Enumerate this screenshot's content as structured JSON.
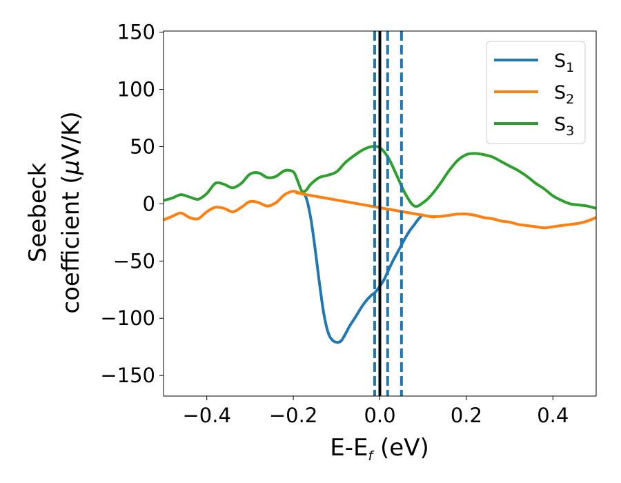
{
  "chart_data": {
    "type": "line",
    "xlabel_main": "E-E",
    "xlabel_sub": "f",
    "xlabel_unit": " (eV)",
    "ylabel_line1": "Seebeck",
    "ylabel_line2_a": "coefficient  (",
    "ylabel_line2_mu": "μ",
    "ylabel_line2_b": "V/K)",
    "xlim": [
      -0.5,
      0.5
    ],
    "ylim": [
      -168,
      151
    ],
    "xticks": [
      -0.4,
      -0.2,
      0.0,
      0.2,
      0.4
    ],
    "xtick_labels": [
      "−0.4",
      "−0.2",
      "0.0",
      "0.2",
      "0.4"
    ],
    "yticks": [
      -150,
      -100,
      -50,
      0,
      50,
      100,
      150
    ],
    "ytick_labels": [
      "−150",
      "−100",
      "−50",
      "0",
      "50",
      "100",
      "150"
    ],
    "legend_position": "top-right",
    "grid": false,
    "series": [
      {
        "name": "S1",
        "label_main": "S",
        "label_sub": "1",
        "color": "#1f77b4",
        "x": [
          -0.18,
          -0.17,
          -0.16,
          -0.15,
          -0.14,
          -0.13,
          -0.12,
          -0.11,
          -0.1,
          -0.09,
          -0.08,
          -0.07,
          -0.06,
          -0.05,
          -0.04,
          -0.03,
          -0.02,
          -0.01,
          0.0,
          0.01,
          0.02,
          0.03,
          0.04,
          0.05,
          0.06,
          0.07,
          0.08,
          0.09,
          0.1
        ],
        "y": [
          10,
          5,
          -12,
          -38,
          -68,
          -95,
          -112,
          -119,
          -121,
          -120,
          -114,
          -107,
          -101,
          -95,
          -89,
          -84,
          -80,
          -77,
          -72,
          -66,
          -58,
          -50,
          -43,
          -36,
          -29,
          -23,
          -18,
          -13,
          -9
        ]
      },
      {
        "name": "S2",
        "label_main": "S",
        "label_sub": "2",
        "color": "#ff7f0e",
        "x": [
          -0.5,
          -0.48,
          -0.46,
          -0.44,
          -0.42,
          -0.4,
          -0.38,
          -0.36,
          -0.34,
          -0.32,
          -0.3,
          -0.28,
          -0.26,
          -0.24,
          -0.22,
          -0.2,
          -0.19,
          -0.18,
          -0.17,
          0.1,
          0.12,
          0.14,
          0.16,
          0.18,
          0.2,
          0.22,
          0.24,
          0.26,
          0.28,
          0.3,
          0.32,
          0.34,
          0.36,
          0.38,
          0.4,
          0.42,
          0.44,
          0.46,
          0.48,
          0.5
        ],
        "y": [
          -14,
          -11,
          -8,
          -12,
          -13,
          -7,
          -3,
          -4,
          -7,
          -3,
          2,
          1,
          -2,
          1,
          8,
          11,
          10,
          9,
          8,
          -10,
          -11,
          -11,
          -10,
          -9,
          -9,
          -10,
          -12,
          -13,
          -15,
          -16,
          -18,
          -19,
          -20,
          -21,
          -20,
          -19,
          -18,
          -17,
          -15,
          -12
        ]
      },
      {
        "name": "S3",
        "label_main": "S",
        "label_sub": "3",
        "color": "#2ca02c",
        "x": [
          -0.5,
          -0.48,
          -0.46,
          -0.44,
          -0.42,
          -0.4,
          -0.38,
          -0.36,
          -0.34,
          -0.32,
          -0.3,
          -0.28,
          -0.26,
          -0.24,
          -0.22,
          -0.2,
          -0.19,
          -0.18,
          -0.17,
          -0.16,
          -0.14,
          -0.12,
          -0.1,
          -0.08,
          -0.06,
          -0.04,
          -0.02,
          0.0,
          0.02,
          0.04,
          0.06,
          0.08,
          0.1,
          0.12,
          0.14,
          0.16,
          0.18,
          0.2,
          0.22,
          0.24,
          0.26,
          0.28,
          0.3,
          0.32,
          0.34,
          0.36,
          0.38,
          0.4,
          0.42,
          0.44,
          0.46,
          0.48,
          0.5
        ],
        "y": [
          3,
          5,
          8,
          6,
          4,
          9,
          18,
          17,
          14,
          18,
          26,
          27,
          23,
          24,
          29,
          28,
          20,
          11,
          12,
          17,
          23,
          25,
          28,
          36,
          42,
          47,
          50,
          49,
          40,
          24,
          8,
          -2,
          1,
          8,
          18,
          29,
          38,
          43,
          44,
          43,
          41,
          37,
          33,
          29,
          24,
          18,
          13,
          7,
          3,
          0,
          -1,
          -2,
          -4
        ]
      }
    ],
    "vlines": [
      {
        "x": 0.0,
        "style": "solid",
        "color": "#000000"
      },
      {
        "x": -0.012,
        "style": "dashed",
        "color": "#1f77b4"
      },
      {
        "x": 0.018,
        "style": "dashed",
        "color": "#1f77b4"
      },
      {
        "x": 0.05,
        "style": "dashed",
        "color": "#1f77b4"
      }
    ]
  }
}
